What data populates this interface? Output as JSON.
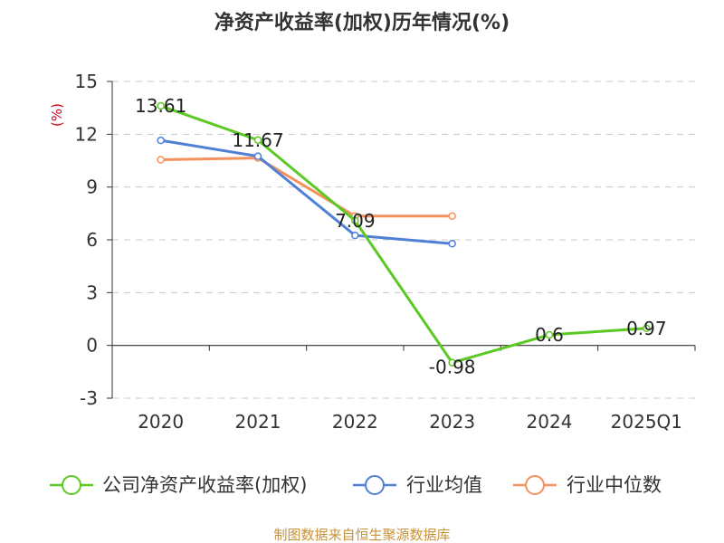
{
  "chart_data": {
    "type": "line",
    "title": "净资产收益率(加权)历年情况(%)",
    "ylabel": "(%)",
    "categories": [
      "2020",
      "2021",
      "2022",
      "2023",
      "2024",
      "2025Q1"
    ],
    "ylim": [
      -3,
      15
    ],
    "yticks": [
      -3,
      0,
      3,
      6,
      9,
      12,
      15
    ],
    "grid": true,
    "legend_position": "bottom",
    "series": [
      {
        "name": "公司净资产收益率(加权)",
        "color": "#5cc823",
        "values": [
          13.61,
          11.67,
          7.09,
          -0.98,
          0.6,
          0.97
        ],
        "labels": [
          "13.61",
          "11.67",
          "7.09",
          "-0.98",
          "0.6",
          "0.97"
        ]
      },
      {
        "name": "行业均值",
        "color": "#4f7fd6",
        "values": [
          11.65,
          10.75,
          6.25,
          5.78,
          null,
          null
        ]
      },
      {
        "name": "行业中位数",
        "color": "#f5915c",
        "values": [
          10.55,
          10.65,
          7.35,
          7.35,
          null,
          null
        ]
      }
    ],
    "source": "制图数据来自恒生聚源数据库"
  }
}
